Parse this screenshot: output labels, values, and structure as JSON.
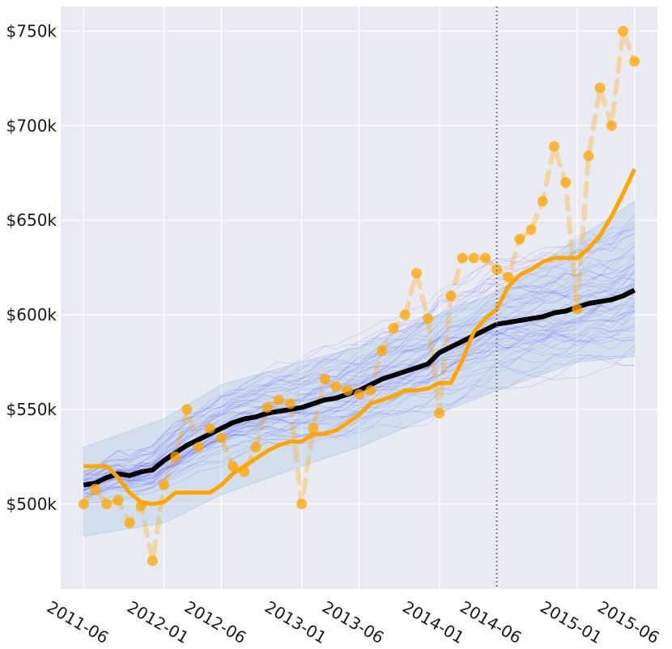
{
  "chart_data": {
    "type": "line",
    "title": "",
    "xlabel": "",
    "ylabel": "",
    "grid": true,
    "background": "#eaeaf2",
    "xlim": [
      "2011-04",
      "2015-08"
    ],
    "ylim": [
      455000,
      763000
    ],
    "x_ticks": [
      "2011-06",
      "2012-01",
      "2012-06",
      "2013-01",
      "2013-06",
      "2014-01",
      "2014-06",
      "2015-01",
      "2015-06"
    ],
    "y_ticks": [
      {
        "value": 500000,
        "label": "$500k"
      },
      {
        "value": 550000,
        "label": "$550k"
      },
      {
        "value": 600000,
        "label": "$600k"
      },
      {
        "value": 650000,
        "label": "$650k"
      },
      {
        "value": 700000,
        "label": "$700k"
      },
      {
        "value": 750000,
        "label": "$750k"
      }
    ],
    "forecast_start": "2014-06",
    "band": {
      "color": "#a6c8e6",
      "x": [
        "2011-06",
        "2012-01",
        "2012-06",
        "2013-01",
        "2013-06",
        "2014-01",
        "2014-06",
        "2015-01",
        "2015-06"
      ],
      "lower": [
        483000,
        490000,
        505000,
        520000,
        530000,
        548000,
        560000,
        575000,
        578000
      ],
      "upper": [
        530000,
        545000,
        563000,
        575000,
        583000,
        600000,
        612000,
        640000,
        660000
      ]
    },
    "sample_paths": {
      "color": "#3b3bff",
      "count": 60
    },
    "series": [
      {
        "role": "mean",
        "color": "#000000",
        "x": [
          "2011-06",
          "2011-07",
          "2011-08",
          "2011-09",
          "2011-10",
          "2011-11",
          "2011-12",
          "2012-01",
          "2012-02",
          "2012-03",
          "2012-04",
          "2012-05",
          "2012-06",
          "2012-07",
          "2012-08",
          "2012-09",
          "2012-10",
          "2012-11",
          "2012-12",
          "2013-01",
          "2013-02",
          "2013-03",
          "2013-04",
          "2013-05",
          "2013-06",
          "2013-07",
          "2013-08",
          "2013-09",
          "2013-10",
          "2013-11",
          "2013-12",
          "2014-01",
          "2014-02",
          "2014-03",
          "2014-04",
          "2014-05",
          "2014-06",
          "2014-07",
          "2014-08",
          "2014-09",
          "2014-10",
          "2014-11",
          "2014-12",
          "2015-01",
          "2015-02",
          "2015-03",
          "2015-04",
          "2015-05",
          "2015-06"
        ],
        "values": [
          510000,
          511000,
          514000,
          516000,
          515000,
          517000,
          518000,
          523000,
          527000,
          531000,
          534000,
          537000,
          540000,
          543000,
          545000,
          546000,
          548000,
          549000,
          550000,
          551000,
          553000,
          555000,
          556000,
          558000,
          560000,
          563000,
          566000,
          568000,
          570000,
          572000,
          574000,
          580000,
          583000,
          586000,
          589000,
          592000,
          595000,
          596000,
          597000,
          598000,
          599000,
          601000,
          602000,
          604000,
          606000,
          607000,
          608000,
          610000,
          613000
        ]
      },
      {
        "role": "smoothed",
        "color": "#ffa500",
        "x": [
          "2011-06",
          "2011-07",
          "2011-08",
          "2011-09",
          "2011-10",
          "2011-11",
          "2011-12",
          "2012-01",
          "2012-02",
          "2012-03",
          "2012-04",
          "2012-05",
          "2012-06",
          "2012-07",
          "2012-08",
          "2012-09",
          "2012-10",
          "2012-11",
          "2012-12",
          "2013-01",
          "2013-02",
          "2013-03",
          "2013-04",
          "2013-05",
          "2013-06",
          "2013-07",
          "2013-08",
          "2013-09",
          "2013-10",
          "2013-11",
          "2013-12",
          "2014-01",
          "2014-02",
          "2014-03",
          "2014-04",
          "2014-05",
          "2014-06",
          "2014-07",
          "2014-08",
          "2014-09",
          "2014-10",
          "2014-11",
          "2014-12",
          "2015-01",
          "2015-02",
          "2015-03",
          "2015-04",
          "2015-05",
          "2015-06"
        ],
        "values": [
          520000,
          520000,
          520000,
          514000,
          506000,
          501000,
          500000,
          501000,
          506000,
          506000,
          506000,
          506000,
          510000,
          516000,
          520000,
          524000,
          528000,
          531000,
          533000,
          533000,
          537000,
          537000,
          539000,
          543000,
          547000,
          553000,
          555000,
          557000,
          560000,
          560000,
          561000,
          564000,
          564000,
          576000,
          591000,
          598000,
          603000,
          615000,
          621000,
          624000,
          628000,
          630000,
          630000,
          630000,
          635000,
          642000,
          652000,
          664000,
          677000
        ]
      },
      {
        "role": "observed",
        "color": "#ffa500",
        "x": [
          "2011-06",
          "2011-07",
          "2011-08",
          "2011-09",
          "2011-10",
          "2011-11",
          "2011-12",
          "2012-01",
          "2012-02",
          "2012-03",
          "2012-04",
          "2012-05",
          "2012-06",
          "2012-07",
          "2012-08",
          "2012-09",
          "2012-10",
          "2012-11",
          "2012-12",
          "2013-01",
          "2013-02",
          "2013-03",
          "2013-04",
          "2013-05",
          "2013-06",
          "2013-07",
          "2013-08",
          "2013-09",
          "2013-10",
          "2013-11",
          "2013-12",
          "2014-01",
          "2014-02",
          "2014-03",
          "2014-04",
          "2014-05",
          "2014-06",
          "2014-07",
          "2014-08",
          "2014-09",
          "2014-10",
          "2014-11",
          "2014-12",
          "2015-01",
          "2015-02",
          "2015-03",
          "2015-04",
          "2015-05",
          "2015-06"
        ],
        "values": [
          500000,
          508000,
          500000,
          502000,
          490000,
          499000,
          470000,
          510000,
          525000,
          550000,
          530000,
          540000,
          535000,
          520000,
          517000,
          530000,
          551000,
          555000,
          553000,
          500000,
          540000,
          566000,
          562000,
          560000,
          558000,
          560000,
          581000,
          593000,
          600000,
          622000,
          598000,
          548000,
          610000,
          630000,
          630000,
          630000,
          624000,
          620000,
          640000,
          645000,
          660000,
          689000,
          670000,
          603000,
          684000,
          720000,
          700000,
          750000,
          734000
        ]
      }
    ]
  }
}
